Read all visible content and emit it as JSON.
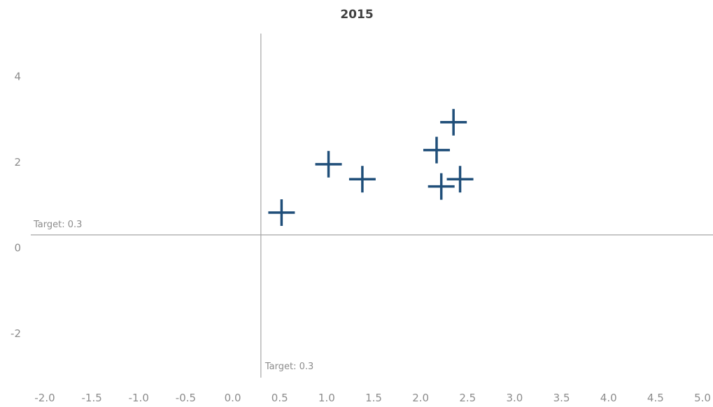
{
  "chart_data": {
    "type": "scatter",
    "title": "2015",
    "xlabel": "",
    "ylabel": "",
    "xlim": [
      -2.0,
      5.0
    ],
    "ylim": [
      -3.0,
      5.0
    ],
    "x_ticks": [
      "-2.0",
      "-1.5",
      "-1.0",
      "-0.5",
      "0.0",
      "0.5",
      "1.0",
      "1.5",
      "2.0",
      "2.5",
      "3.0",
      "3.5",
      "4.0",
      "4.5",
      "5.0"
    ],
    "y_ticks": [
      "-2",
      "0",
      "2",
      "4"
    ],
    "grid": false,
    "marker": "plus",
    "marker_color": "#1f4e79",
    "line_color": "#a6a6a6",
    "points": [
      {
        "x": 0.52,
        "y": 0.82
      },
      {
        "x": 1.02,
        "y": 1.95
      },
      {
        "x": 1.38,
        "y": 1.6
      },
      {
        "x": 2.17,
        "y": 2.28
      },
      {
        "x": 2.22,
        "y": 1.43
      },
      {
        "x": 2.35,
        "y": 2.93
      },
      {
        "x": 2.42,
        "y": 1.6
      }
    ],
    "reference_lines": [
      {
        "axis": "x",
        "value": 0.3,
        "label": "Target: 0.3"
      },
      {
        "axis": "y",
        "value": 0.3,
        "label": "Target: 0.3"
      }
    ]
  }
}
